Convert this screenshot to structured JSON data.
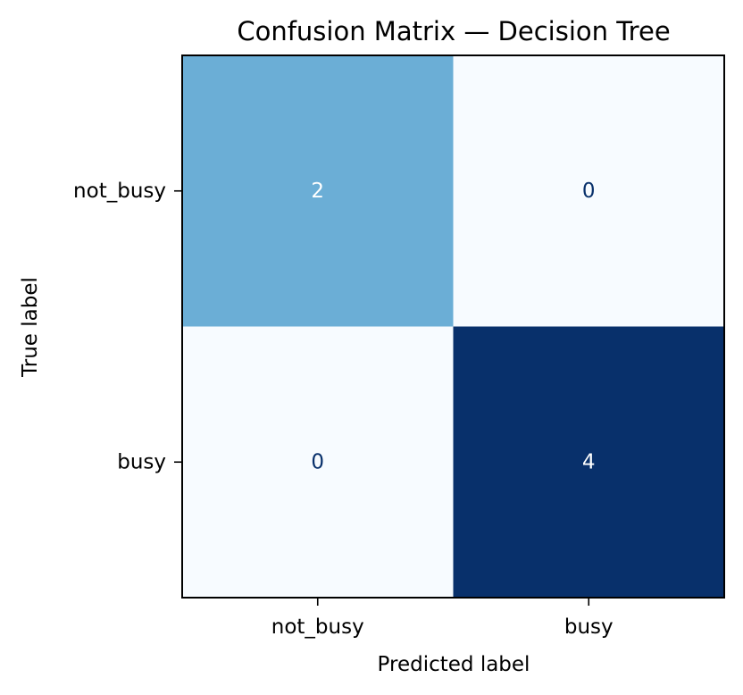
{
  "chart_data": {
    "type": "heatmap",
    "title": "Confusion Matrix — Decision Tree",
    "xlabel": "Predicted label",
    "ylabel": "True label",
    "x_categories": [
      "not_busy",
      "busy"
    ],
    "y_categories": [
      "not_busy",
      "busy"
    ],
    "values": [
      [
        2,
        0
      ],
      [
        0,
        4
      ]
    ],
    "colormap": "Blues",
    "vmin": 0,
    "vmax": 4,
    "colors": {
      "low": "#f7fbff",
      "mid": "#6baed6",
      "high": "#08306b",
      "text_on_dark": "#ffffff",
      "text_on_light": "#08306b"
    },
    "grid": false,
    "legend": "none"
  }
}
